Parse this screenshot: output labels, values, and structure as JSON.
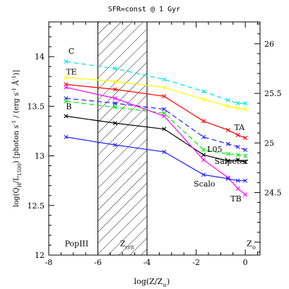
{
  "chart_data": {
    "type": "line",
    "title": "SFR=const @ 1 Gyr",
    "xlabel": "log(Z/Z",
    "xlabel_sub": "⊙",
    "xlabel_close": ")",
    "ylabel": "log(Q",
    "ylabel_sub1": "H",
    "ylabel_mid": "/L",
    "ylabel_sub2": "1500",
    "ylabel_rest": ") [photon s",
    "ylabel_sup1": "-1",
    "ylabel_rest2": " / (erg s",
    "ylabel_sup2": "-1",
    "ylabel_rest3": " Å",
    "ylabel_sup3": "-1",
    "ylabel_end": ")]",
    "xlim": [
      -8,
      0.6
    ],
    "ylim": [
      12,
      14.35
    ],
    "x_ticks": [
      "-8",
      "-6",
      "-4",
      "-2",
      "0"
    ],
    "x_tick_values": [
      -8,
      -6,
      -4,
      -2,
      0
    ],
    "y_ticks": [
      "12",
      "12.5",
      "13",
      "13.5",
      "14"
    ],
    "y_tick_values": [
      12,
      12.5,
      13,
      13.5,
      14
    ],
    "right_axis": {
      "ticks": [
        "24.5",
        "25",
        "25.5",
        "26"
      ],
      "tick_values": [
        24.5,
        25,
        25.5,
        26
      ],
      "ylim": [
        23.87,
        26.22
      ]
    },
    "hatched_region": {
      "x_from": -6,
      "x_to": -4
    },
    "annotations": [
      {
        "text": "PopIII",
        "x": -7.35,
        "y": 12.09
      },
      {
        "text": "Z",
        "sub": "crit",
        "x": -5.1,
        "y": 12.09
      },
      {
        "text": "Z",
        "sub": "⊙",
        "x": 0.05,
        "y": 12.09
      }
    ],
    "series": [
      {
        "name": "C",
        "color": "#00e5e5",
        "dash": "7,4",
        "label_x": -7.2,
        "label_y": 14.03,
        "x": [
          -7.3,
          -5.3,
          -3.3,
          -1.7,
          -0.7,
          -0.3,
          0
        ],
        "y": [
          13.95,
          13.88,
          13.77,
          13.65,
          13.56,
          13.53,
          13.53
        ]
      },
      {
        "name": "TE",
        "color": "#ffff00",
        "dash": "",
        "label_x": -7.3,
        "label_y": 13.82,
        "x": [
          -7.3,
          -5.3,
          -3.3,
          -1.7,
          -0.7,
          -0.3,
          0
        ],
        "y": [
          13.79,
          13.75,
          13.69,
          13.57,
          13.5,
          13.48,
          13.47
        ]
      },
      {
        "name": "TA",
        "color": "#ff0000",
        "dash": "",
        "label_x": -0.45,
        "label_y": 13.26,
        "x": [
          -7.3,
          -5.3,
          -3.3,
          -1.7,
          -0.7,
          -0.3,
          0
        ],
        "y": [
          13.72,
          13.67,
          13.6,
          13.35,
          13.26,
          13.21,
          13.18
        ]
      },
      {
        "name": "",
        "color": "#2020ff",
        "dash": "7,4",
        "label_x": 0,
        "label_y": 0,
        "x": [
          -7.3,
          -5.3,
          -3.3,
          -1.7,
          -0.7,
          -0.3,
          0
        ],
        "y": [
          13.58,
          13.53,
          13.47,
          13.19,
          13.12,
          13.09,
          13.06
        ]
      },
      {
        "name": "L05",
        "color": "#00ee00",
        "dash": "7,4",
        "label_x": -1.55,
        "label_y": 13.04,
        "x": [
          -7.3,
          -5.3,
          -3.3,
          -1.7,
          -0.7,
          -0.3,
          0
        ],
        "y": [
          13.55,
          13.49,
          13.43,
          13.06,
          13.02,
          13.01,
          13.0
        ]
      },
      {
        "name": "B",
        "color": "#000000",
        "dash": "",
        "label_x": -7.3,
        "label_y": 13.47,
        "x": [
          -7.3,
          -5.3,
          -3.3,
          -1.7,
          -0.7,
          -0.3,
          0
        ],
        "y": [
          13.4,
          13.33,
          13.27,
          13.01,
          12.95,
          12.96,
          12.94
        ]
      },
      {
        "name": "TB",
        "color": "#ff00ff",
        "dash": "",
        "label_x": -0.6,
        "label_y": 12.54,
        "x": [
          -7.3,
          -5.3,
          -3.3,
          -1.7,
          -0.7,
          -0.3,
          0
        ],
        "y": [
          13.69,
          13.58,
          13.4,
          12.96,
          12.78,
          12.67,
          12.61
        ]
      },
      {
        "name": "",
        "color": "#2020ff",
        "dash": "",
        "label_x": 0,
        "label_y": 0,
        "x": [
          -7.3,
          -5.3,
          -3.3,
          -1.7,
          -0.7,
          -0.3,
          0
        ],
        "y": [
          13.19,
          13.11,
          13.04,
          12.81,
          12.77,
          12.75,
          12.75
        ]
      }
    ],
    "extra_labels": [
      {
        "text": "Salpeter",
        "x": -1.25,
        "y": 12.92
      },
      {
        "text": "Scalo",
        "x": -2.1,
        "y": 12.69
      }
    ],
    "grid": false
  }
}
